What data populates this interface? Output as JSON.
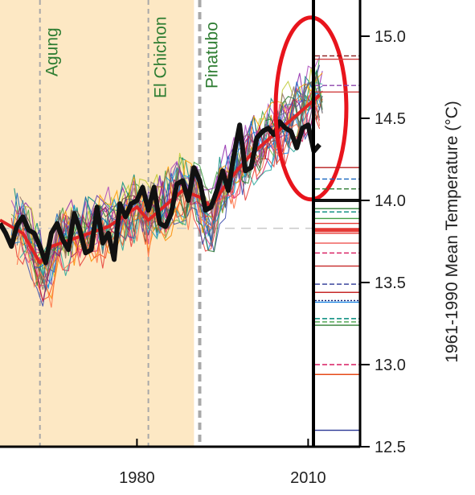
{
  "chart_data": {
    "type": "line",
    "ylabel": "1961-1990 Mean Temperature (°C)",
    "xlim": [
      1956,
      2013
    ],
    "ylim": [
      12.5,
      15.2
    ],
    "x_ticks": [
      "1980",
      "2010"
    ],
    "y_ticks": [
      "12.5",
      "13.0",
      "13.5",
      "14.0",
      "14.5",
      "15.0"
    ],
    "volcanic_events": [
      {
        "name": "Agung",
        "year": 1963
      },
      {
        "name": "El Chichon",
        "year": 1982
      },
      {
        "name": "Pinatubo",
        "year": 1991
      }
    ],
    "shaded_period": [
      1956,
      1990
    ],
    "reference_temperature": 13.83,
    "observations": {
      "color": "#111111",
      "years": [
        1956,
        1957,
        1958,
        1959,
        1960,
        1961,
        1962,
        1963,
        1964,
        1965,
        1966,
        1967,
        1968,
        1969,
        1970,
        1971,
        1972,
        1973,
        1974,
        1975,
        1976,
        1977,
        1978,
        1979,
        1980,
        1981,
        1982,
        1983,
        1984,
        1985,
        1986,
        1987,
        1988,
        1989,
        1990,
        1991,
        1992,
        1993,
        1994,
        1995,
        1996,
        1997,
        1998,
        1999,
        2000,
        2001,
        2002,
        2003,
        2004,
        2005,
        2006,
        2007,
        2008,
        2009,
        2010,
        2011,
        2012
      ],
      "values": [
        13.86,
        13.8,
        13.72,
        13.85,
        13.9,
        13.82,
        13.8,
        13.72,
        13.62,
        13.8,
        13.86,
        13.76,
        13.7,
        13.92,
        13.82,
        13.68,
        13.7,
        13.96,
        13.74,
        13.8,
        13.64,
        13.98,
        13.9,
        13.98,
        14.0,
        14.08,
        13.94,
        14.08,
        13.86,
        13.84,
        13.92,
        14.1,
        14.12,
        14.0,
        14.2,
        14.12,
        13.94,
        13.96,
        14.06,
        14.18,
        14.06,
        14.28,
        14.46,
        14.18,
        14.2,
        14.38,
        14.42,
        14.44,
        14.4,
        14.48,
        14.44,
        14.42,
        14.32,
        14.44,
        14.46,
        14.3,
        14.34
      ]
    },
    "model_mean": {
      "color": "#e02424",
      "years": [
        1956,
        1960,
        1963,
        1965,
        1970,
        1975,
        1980,
        1982,
        1984,
        1988,
        1991,
        1993,
        1996,
        2000,
        2004,
        2008,
        2012
      ],
      "values": [
        13.88,
        13.8,
        13.62,
        13.72,
        13.78,
        13.84,
        13.96,
        13.88,
        13.94,
        14.06,
        14.02,
        13.96,
        14.12,
        14.28,
        14.4,
        14.52,
        14.64
      ]
    },
    "right_panel_marks": [
      {
        "value": 14.88,
        "color": "#8b1a1a",
        "style": "dashed"
      },
      {
        "value": 14.86,
        "color": "#d04040",
        "style": "solid"
      },
      {
        "value": 14.7,
        "color": "#8e44ad",
        "style": "dashed"
      },
      {
        "value": 14.66,
        "color": "#d04040",
        "style": "solid"
      },
      {
        "value": 14.2,
        "color": "#b71c1c",
        "style": "solid"
      },
      {
        "value": 14.13,
        "color": "#1565c0",
        "style": "dashed"
      },
      {
        "value": 14.07,
        "color": "#2e7d32",
        "style": "dashed"
      },
      {
        "value": 14.0,
        "color": "#111111",
        "style": "solid"
      },
      {
        "value": 13.95,
        "color": "#2e7d32",
        "style": "solid"
      },
      {
        "value": 13.93,
        "color": "#00897b",
        "style": "dashed"
      },
      {
        "value": 13.89,
        "color": "#43a047",
        "style": "solid"
      },
      {
        "value": 13.86,
        "color": "#e53935",
        "style": "solid"
      },
      {
        "value": 13.82,
        "color": "#e53935",
        "style": "solid"
      },
      {
        "value": 13.8,
        "color": "#e53935",
        "style": "solid"
      },
      {
        "value": 13.74,
        "color": "#ef5350",
        "style": "solid"
      },
      {
        "value": 13.68,
        "color": "#d81b60",
        "style": "dashed"
      },
      {
        "value": 13.6,
        "color": "#c62828",
        "style": "solid"
      },
      {
        "value": 13.49,
        "color": "#283593",
        "style": "dashed"
      },
      {
        "value": 13.44,
        "color": "#c62828",
        "style": "solid"
      },
      {
        "value": 13.39,
        "color": "#0d1b6e",
        "style": "dotted"
      },
      {
        "value": 13.38,
        "color": "#1e88e5",
        "style": "solid"
      },
      {
        "value": 13.28,
        "color": "#00897b",
        "style": "dashed"
      },
      {
        "value": 13.26,
        "color": "#43a047",
        "style": "dashed"
      },
      {
        "value": 13.24,
        "color": "#2e7d32",
        "style": "solid"
      },
      {
        "value": 13.0,
        "color": "#d81b60",
        "style": "dashed"
      },
      {
        "value": 12.94,
        "color": "#e64a19",
        "style": "solid"
      },
      {
        "value": 12.6,
        "color": "#283593",
        "style": "solid"
      }
    ],
    "colors": {
      "shading": "#fde8c4",
      "highlight_ellipse": "#e8141c",
      "reference_line": "#c8c8c8",
      "event_line": "#a8a8a8",
      "event_text": "#2e7d32"
    }
  }
}
